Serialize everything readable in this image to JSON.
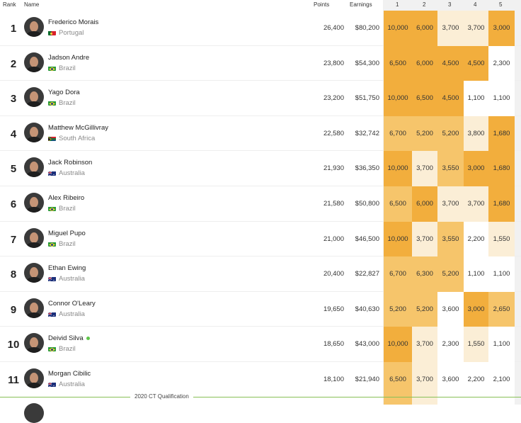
{
  "header": {
    "rank": "Rank",
    "name": "Name",
    "points": "Points",
    "earnings": "Earnings",
    "events": [
      "1",
      "2",
      "3",
      "4",
      "5"
    ]
  },
  "colors": {
    "heat_high": "#f2ae3d",
    "heat_mid": "#f6c56b",
    "heat_low": "#fbeed6",
    "qual_line": "#88c057",
    "online_dot": "#5fc54a"
  },
  "rows": [
    {
      "rank": "1",
      "name": "Frederico Morais",
      "country": "Portugal",
      "flag": "portugal-flag-icon",
      "points": "26,400",
      "earnings": "$80,200",
      "events": [
        "10,000",
        "6,000",
        "3,700",
        "3,700",
        "3,000"
      ],
      "heat": [
        3,
        3,
        1,
        1,
        3
      ]
    },
    {
      "rank": "2",
      "name": "Jadson Andre",
      "country": "Brazil",
      "flag": "brazil-flag-icon",
      "points": "23,800",
      "earnings": "$54,300",
      "events": [
        "6,500",
        "6,000",
        "4,500",
        "4,500",
        "2,300"
      ],
      "heat": [
        3,
        3,
        3,
        3,
        0
      ]
    },
    {
      "rank": "3",
      "name": "Yago Dora",
      "country": "Brazil",
      "flag": "brazil-flag-icon",
      "points": "23,200",
      "earnings": "$51,750",
      "events": [
        "10,000",
        "6,500",
        "4,500",
        "1,100",
        "1,100"
      ],
      "heat": [
        3,
        3,
        3,
        0,
        0
      ]
    },
    {
      "rank": "4",
      "name": "Matthew McGillivray",
      "country": "South Africa",
      "flag": "south-africa-flag-icon",
      "points": "22,580",
      "earnings": "$32,742",
      "events": [
        "6,700",
        "5,200",
        "5,200",
        "3,800",
        "1,680"
      ],
      "heat": [
        2,
        2,
        2,
        1,
        3
      ]
    },
    {
      "rank": "5",
      "name": "Jack Robinson",
      "country": "Australia",
      "flag": "australia-flag-icon",
      "points": "21,930",
      "earnings": "$36,350",
      "events": [
        "10,000",
        "3,700",
        "3,550",
        "3,000",
        "1,680"
      ],
      "heat": [
        3,
        1,
        2,
        3,
        3
      ]
    },
    {
      "rank": "6",
      "name": "Alex Ribeiro",
      "country": "Brazil",
      "flag": "brazil-flag-icon",
      "points": "21,580",
      "earnings": "$50,800",
      "events": [
        "6,500",
        "6,000",
        "3,700",
        "3,700",
        "1,680"
      ],
      "heat": [
        2,
        3,
        1,
        1,
        3
      ]
    },
    {
      "rank": "7",
      "name": "Miguel Pupo",
      "country": "Brazil",
      "flag": "brazil-flag-icon",
      "points": "21,000",
      "earnings": "$46,500",
      "events": [
        "10,000",
        "3,700",
        "3,550",
        "2,200",
        "1,550"
      ],
      "heat": [
        3,
        1,
        2,
        0,
        1
      ]
    },
    {
      "rank": "8",
      "name": "Ethan Ewing",
      "country": "Australia",
      "flag": "australia-flag-icon",
      "points": "20,400",
      "earnings": "$22,827",
      "events": [
        "6,700",
        "6,300",
        "5,200",
        "1,100",
        "1,100"
      ],
      "heat": [
        2,
        2,
        2,
        0,
        0
      ]
    },
    {
      "rank": "9",
      "name": "Connor O'Leary",
      "country": "Australia",
      "flag": "australia-flag-icon",
      "points": "19,650",
      "earnings": "$40,630",
      "events": [
        "5,200",
        "5,200",
        "3,600",
        "3,000",
        "2,650"
      ],
      "heat": [
        2,
        2,
        0,
        3,
        2
      ]
    },
    {
      "rank": "10",
      "name": "Deivid Silva",
      "country": "Brazil",
      "flag": "brazil-flag-icon",
      "points": "18,650",
      "earnings": "$43,000",
      "events": [
        "10,000",
        "3,700",
        "2,300",
        "1,550",
        "1,100"
      ],
      "heat": [
        3,
        1,
        0,
        1,
        0
      ],
      "online": true
    },
    {
      "rank": "11",
      "name": "Morgan Cibilic",
      "country": "Australia",
      "flag": "australia-flag-icon",
      "points": "18,100",
      "earnings": "$21,940",
      "events": [
        "6,500",
        "3,700",
        "3,600",
        "2,200",
        "2,100"
      ],
      "heat": [
        2,
        1,
        0,
        0,
        0
      ]
    }
  ],
  "qualification_label": "2020 CT Qualification"
}
